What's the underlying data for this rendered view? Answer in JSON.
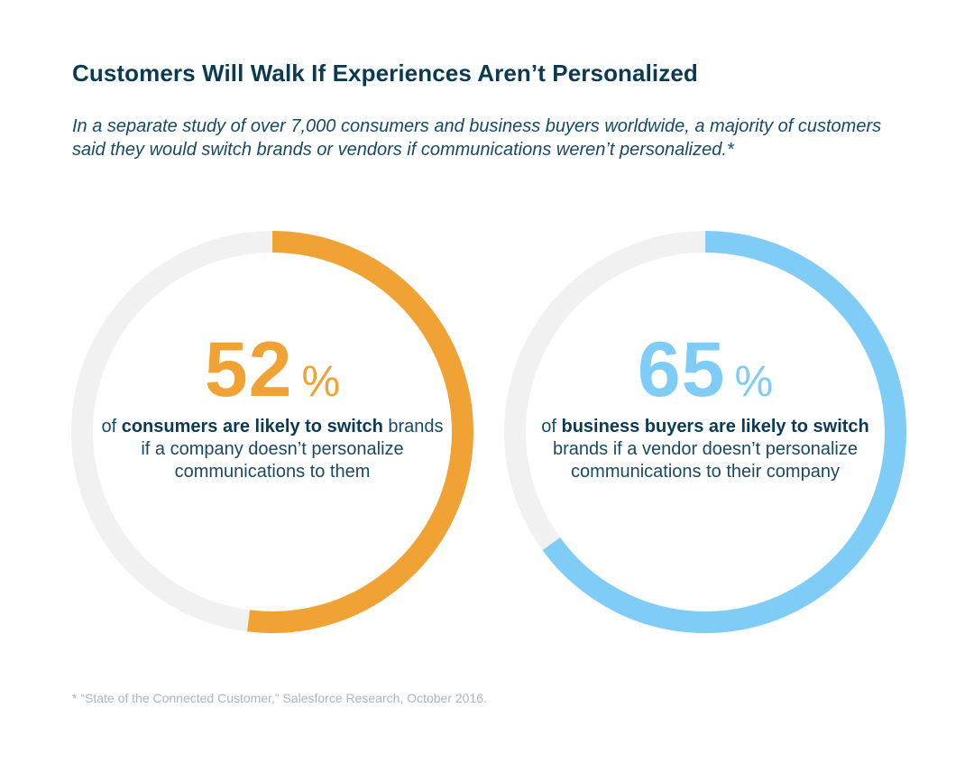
{
  "title": "Customers Will Walk If Experiences Aren’t Personalized",
  "subtitle": "In a separate study of over 7,000 consumers and business buyers worldwide, a majority of customers said they would switch brands or vendors if communications weren’t personalized.*",
  "footnote": "* “State of the Connected Customer,” Salesforce Research, October 2016.",
  "colors": {
    "track": "#f1f1f1",
    "consumers": "#f0a234",
    "business": "#7fcdf6",
    "title": "#0b3a52",
    "text": "#174a63"
  },
  "chart_data": [
    {
      "type": "pie",
      "style": "donut",
      "value": 52,
      "value_label": "52",
      "unit": "%",
      "caption_bold_1": "consumers are likely to switch",
      "caption_pre": "of ",
      "caption_rest": " brands if a company doesn’t personalize communications to them",
      "color": "#f0a234"
    },
    {
      "type": "pie",
      "style": "donut",
      "value": 65,
      "value_label": "65",
      "unit": "%",
      "caption_pre": "of ",
      "caption_bold_1": "business buyers are likely to switch",
      "caption_rest": " brands if a vendor doesn’t personalize communications to their company",
      "color": "#7fcdf6"
    }
  ]
}
